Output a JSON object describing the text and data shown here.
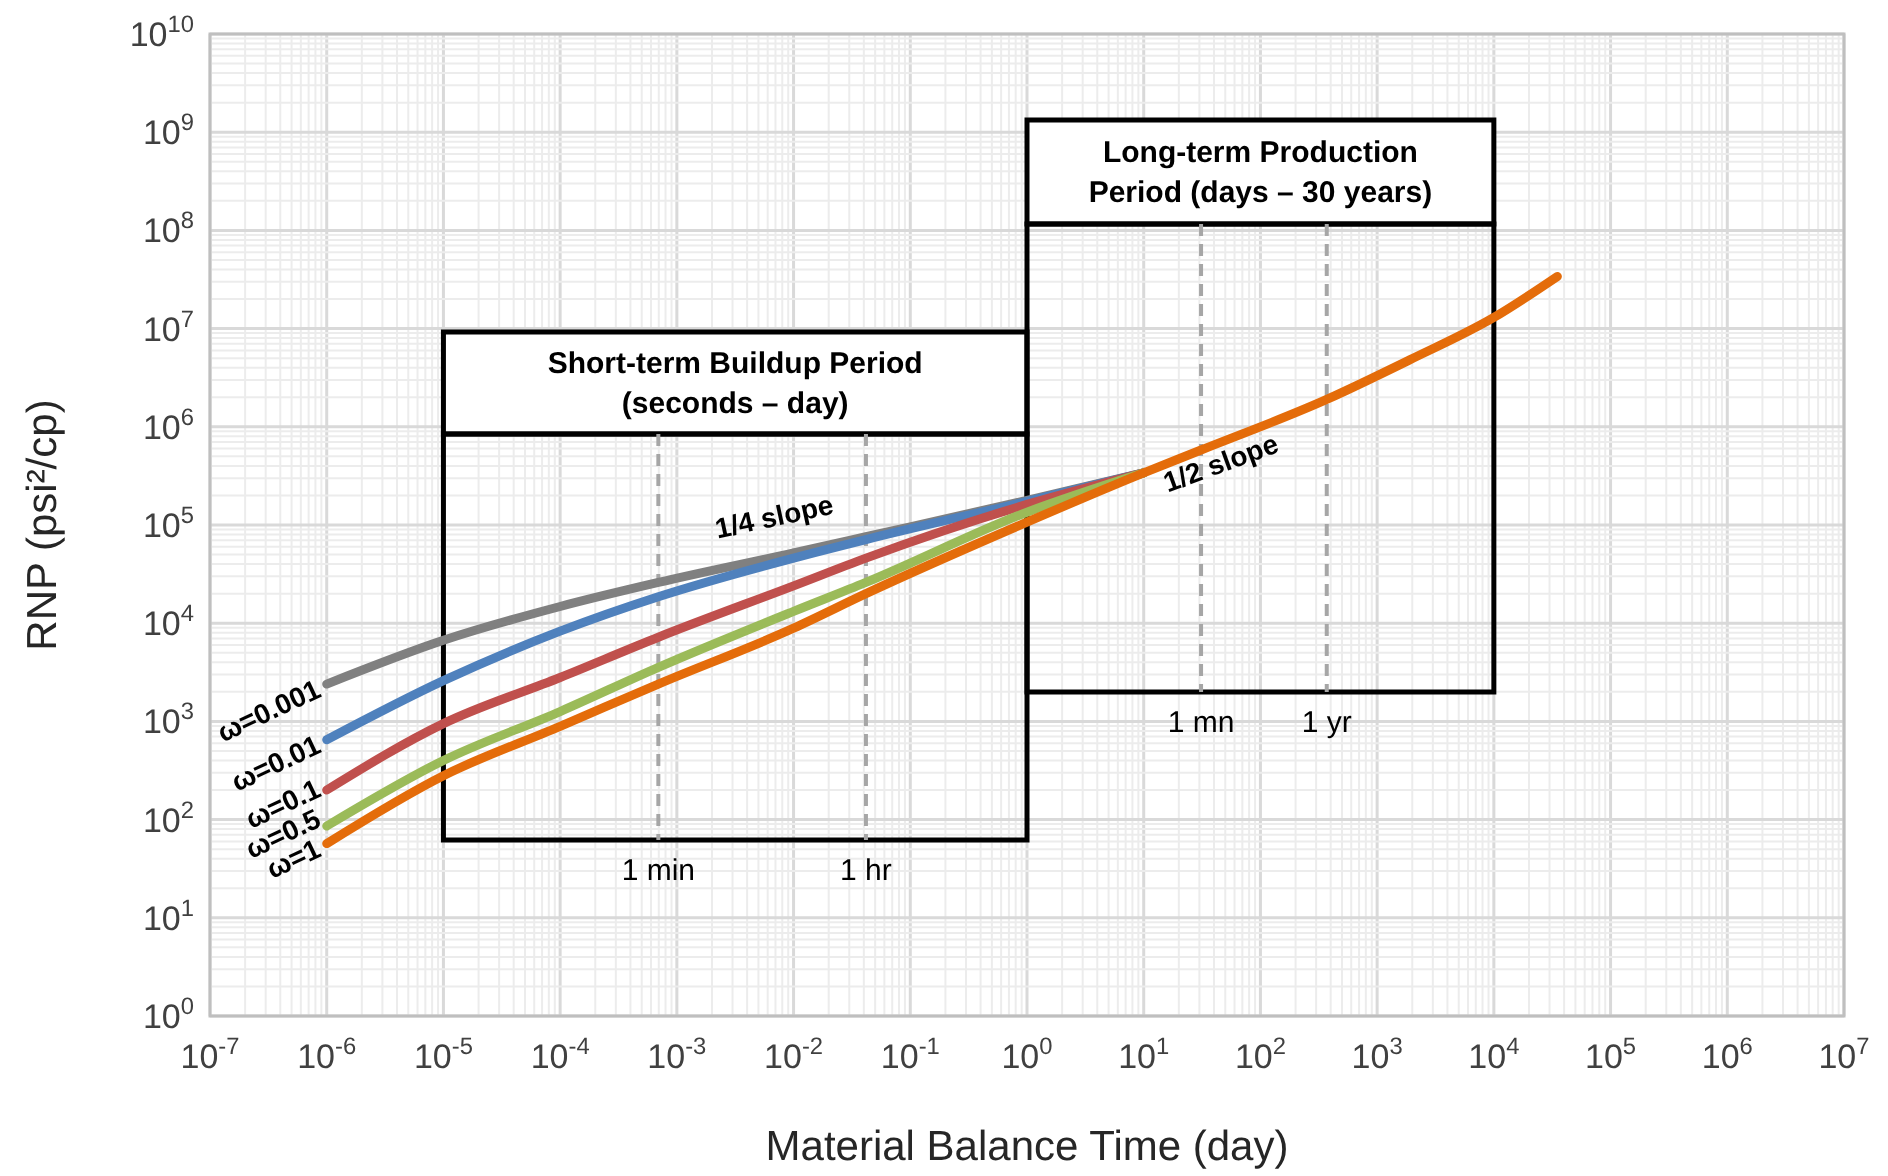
{
  "chart_data": {
    "type": "line",
    "xlabel": "Material Balance Time (day)",
    "ylabel": "RNP (psi²/cp)",
    "log": "xy",
    "grid": true,
    "line_style": "solid",
    "marker": "none",
    "xlim": [
      1e-07,
      10000000.0
    ],
    "ylim": [
      1,
      10000000000.0
    ],
    "xticks": [
      {
        "value": 1e-07,
        "label": "10$^{-7}$"
      },
      {
        "value": 1e-06,
        "label": "10$^{-6}$"
      },
      {
        "value": 1e-05,
        "label": "10$^{-5}$"
      },
      {
        "value": 0.0001,
        "label": "10$^{-4}$"
      },
      {
        "value": 0.001,
        "label": "10$^{-3}$"
      },
      {
        "value": 0.01,
        "label": "10$^{-2}$"
      },
      {
        "value": 0.1,
        "label": "10$^{-1}$"
      },
      {
        "value": 1,
        "label": "10$^{0}$"
      },
      {
        "value": 10,
        "label": "10$^{1}$"
      },
      {
        "value": 100,
        "label": "10$^{2}$"
      },
      {
        "value": 1000,
        "label": "10$^{3}$"
      },
      {
        "value": 10000,
        "label": "10$^{4}$"
      },
      {
        "value": 100000.0,
        "label": "10$^{5}$"
      },
      {
        "value": 1000000.0,
        "label": "10$^{6}$"
      },
      {
        "value": 10000000.0,
        "label": "10$^{7}$"
      }
    ],
    "yticks": [
      {
        "value": 1,
        "label": "10$^{0}$"
      },
      {
        "value": 10,
        "label": "10$^{1}$"
      },
      {
        "value": 100,
        "label": "10$^{2}$"
      },
      {
        "value": 1000,
        "label": "10$^{3}$"
      },
      {
        "value": 10000,
        "label": "10$^{4}$"
      },
      {
        "value": 100000.0,
        "label": "10$^{5}$"
      },
      {
        "value": 1000000.0,
        "label": "10$^{6}$"
      },
      {
        "value": 10000000.0,
        "label": "10$^{7}$"
      },
      {
        "value": 100000000.0,
        "label": "10$^{8}$"
      },
      {
        "value": 1000000000.0,
        "label": "10$^{9}$"
      },
      {
        "value": 10000000000.0,
        "label": "10$^{10}$"
      }
    ],
    "series": [
      {
        "name": "ω=0.001",
        "color": "#808080",
        "x": [
          1e-06,
          1e-05,
          0.0001,
          0.000694,
          0.01,
          0.0417,
          1,
          10
        ],
        "values": [
          2400,
          6700,
          14800,
          26000,
          52000,
          76000,
          178000,
          340000
        ]
      },
      {
        "name": "ω=0.01",
        "color": "#4f81bd",
        "x": [
          1e-06,
          1e-05,
          0.0001,
          0.000694,
          0.01,
          0.0417,
          1,
          10
        ],
        "values": [
          650,
          2600,
          8300,
          18600,
          46000,
          71000,
          174000,
          340000
        ]
      },
      {
        "name": "ω=0.1",
        "color": "#c0504d",
        "x": [
          1e-06,
          1e-05,
          0.0001,
          0.000694,
          0.01,
          0.0417,
          1,
          10
        ],
        "values": [
          200,
          950,
          2800,
          7200,
          24000,
          46000,
          162000,
          340000
        ]
      },
      {
        "name": "ω=0.5",
        "color": "#9bbb59",
        "x": [
          1e-06,
          1e-05,
          0.0001,
          0.000694,
          0.01,
          0.0417,
          1,
          10
        ],
        "values": [
          86,
          400,
          1260,
          3550,
          13200,
          26000,
          135000,
          340000
        ]
      },
      {
        "name": "ω=1",
        "color": "#e46c0a",
        "x": [
          1e-06,
          1e-05,
          0.0001,
          0.000694,
          0.01,
          0.0417,
          1,
          10,
          31,
          370,
          1900,
          10000,
          35000
        ],
        "values": [
          57,
          280,
          890,
          2400,
          8900,
          20000,
          107000,
          340000,
          580000,
          1900000,
          4800000,
          13000000,
          34000000
        ]
      }
    ],
    "bands": [
      {
        "axis": "x",
        "from": 1e-05,
        "to": 1,
        "label": "Short-term Buildup Period\n(seconds – day)"
      },
      {
        "axis": "x",
        "from": 1,
        "to": 10000,
        "label": "Long-term Production\nPeriod (days – 30 years)"
      }
    ],
    "ref_lines": [
      {
        "axis": "x",
        "value": 0.000694,
        "label": "1 min",
        "line_style": "dashed"
      },
      {
        "axis": "x",
        "value": 0.0417,
        "label": "1 hr",
        "line_style": "dashed"
      },
      {
        "axis": "x",
        "value": 31,
        "label": "1 mn",
        "line_style": "dashed"
      },
      {
        "axis": "x",
        "value": 370,
        "label": "1 yr",
        "line_style": "dashed"
      }
    ],
    "annotations": [
      "1/4 slope",
      "1/2 slope"
    ]
  }
}
